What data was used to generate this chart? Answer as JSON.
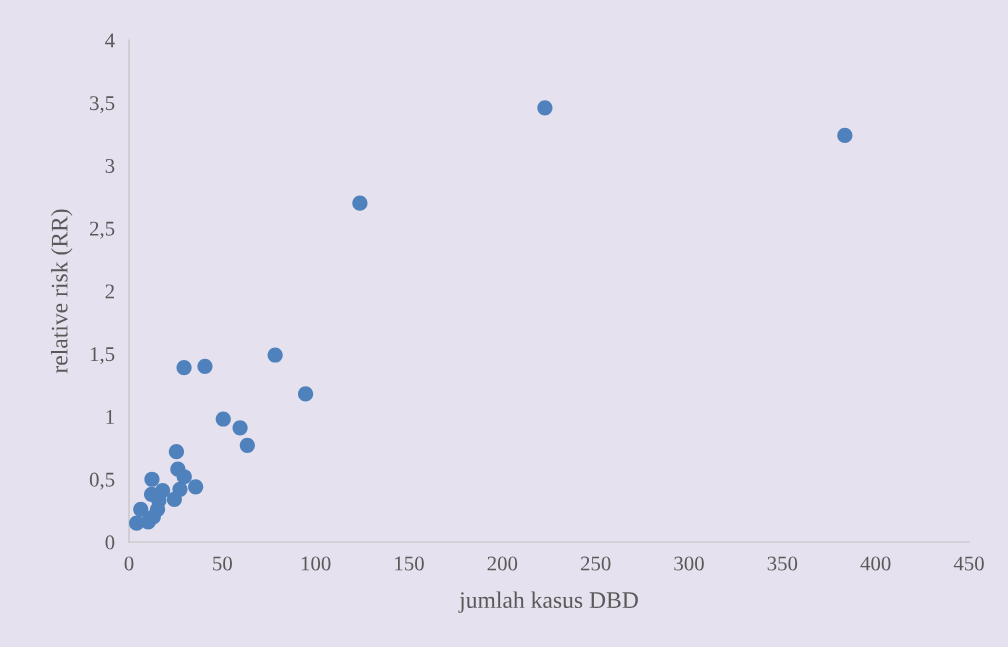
{
  "chart_data": {
    "type": "scatter",
    "xlabel": "jumlah kasus DBD",
    "ylabel": "relative risk (RR)",
    "x": [
      29.5,
      40.7,
      78.3,
      94.6,
      50.5,
      59.5,
      63.4,
      25.4,
      26.2,
      29.6,
      35.7,
      27.3,
      24.3,
      12.3,
      18,
      12.1,
      16,
      15.3,
      6.3,
      13,
      10.3,
      4.1,
      123.7,
      222.8,
      383.5
    ],
    "series": [
      {
        "color": "#4f81bd",
        "values": [
          1.39,
          1.4,
          1.49,
          1.18,
          0.98,
          0.91,
          0.77,
          0.72,
          0.58,
          0.52,
          0.44,
          0.42,
          0.34,
          0.5,
          0.41,
          0.38,
          0.33,
          0.26,
          0.26,
          0.2,
          0.16,
          0.15,
          2.7,
          3.46,
          3.24
        ]
      }
    ],
    "xlim": [
      0,
      450
    ],
    "xticks": [
      0,
      50,
      100,
      150,
      200,
      250,
      300,
      350,
      400,
      450
    ],
    "ylim": [
      0,
      4
    ],
    "yticks": [
      {
        "value": 0,
        "label": "0"
      },
      {
        "value": 0.5,
        "label": "0,5"
      },
      {
        "value": 1,
        "label": "1"
      },
      {
        "value": 1.5,
        "label": "1,5"
      },
      {
        "value": 2,
        "label": "2"
      },
      {
        "value": 2.5,
        "label": "2,5"
      },
      {
        "value": 3,
        "label": "3"
      },
      {
        "value": 3.5,
        "label": "3,5"
      },
      {
        "value": 4,
        "label": "4"
      }
    ],
    "grid": false,
    "legend": false,
    "marker": "circle"
  }
}
